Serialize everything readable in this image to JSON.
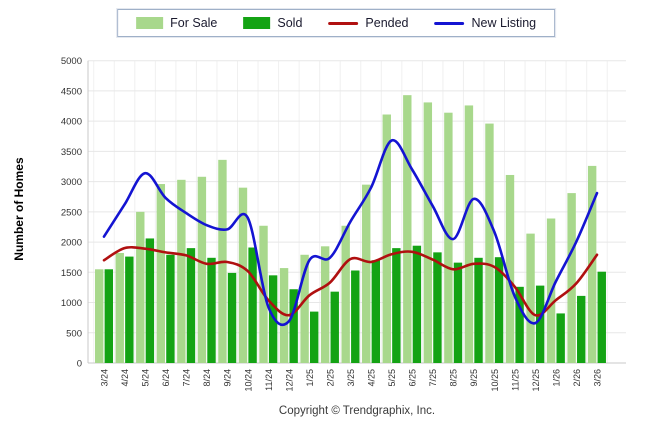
{
  "page": {
    "background": "#ffffff"
  },
  "legend": {
    "position": "top",
    "items": [
      {
        "label": "For Sale",
        "swatch": "bar",
        "color": "#a8d88c"
      },
      {
        "label": "Sold",
        "swatch": "bar",
        "color": "#14a314"
      },
      {
        "label": "Pended",
        "swatch": "line",
        "color": "#b01010"
      },
      {
        "label": "New Listing",
        "swatch": "line",
        "color": "#1414d2"
      }
    ]
  },
  "y_axis": {
    "title": "Number of Homes",
    "min": 0,
    "max": 5000,
    "step": 500
  },
  "footer": {
    "text": "Copyright © Trendgraphix, Inc."
  },
  "chart_data": {
    "type": "bar",
    "title": "",
    "xlabel": "",
    "ylabel": "Number of Homes",
    "ylim": [
      0,
      5000
    ],
    "ytick_step": 500,
    "grid": true,
    "legend_position": "top",
    "categories": [
      "3/24",
      "4/24",
      "5/24",
      "6/24",
      "7/24",
      "8/24",
      "9/24",
      "10/24",
      "11/24",
      "12/24",
      "1/25",
      "2/25",
      "3/25",
      "4/25",
      "5/25",
      "6/25",
      "7/25",
      "8/25",
      "9/25",
      "10/25",
      "11/25",
      "12/25",
      "1/26",
      "2/26",
      "3/26"
    ],
    "series": [
      {
        "name": "For Sale",
        "type": "bar",
        "color": "#a8d88c",
        "values": [
          1550,
          1820,
          2500,
          2960,
          3030,
          3080,
          3360,
          2900,
          2270,
          1570,
          1790,
          1930,
          2270,
          2950,
          4110,
          4430,
          4310,
          4140,
          4260,
          3960,
          3110,
          2140,
          2390,
          2810,
          3260
        ]
      },
      {
        "name": "Sold",
        "type": "bar",
        "color": "#14a314",
        "values": [
          1550,
          1760,
          2060,
          1790,
          1900,
          1740,
          1490,
          1910,
          1450,
          1220,
          850,
          1180,
          1530,
          1700,
          1900,
          1940,
          1830,
          1660,
          1740,
          1750,
          1260,
          1280,
          820,
          1110,
          1510
        ]
      },
      {
        "name": "Pended",
        "type": "line",
        "color": "#b01010",
        "values": [
          1700,
          1900,
          1890,
          1830,
          1780,
          1640,
          1670,
          1520,
          1040,
          790,
          1120,
          1330,
          1720,
          1670,
          1800,
          1840,
          1710,
          1550,
          1640,
          1590,
          1260,
          790,
          1040,
          1320,
          1790
        ]
      },
      {
        "name": "New Listing",
        "type": "line",
        "color": "#1414d2",
        "values": [
          2090,
          2620,
          3140,
          2730,
          2480,
          2280,
          2210,
          2400,
          930,
          690,
          1700,
          1740,
          2340,
          2900,
          3680,
          3200,
          2600,
          2050,
          2715,
          2170,
          1100,
          660,
          1350,
          2010,
          2810
        ]
      }
    ]
  },
  "colors": {
    "grid_h": "#e7e7e7",
    "grid_v": "#f0f0f0",
    "axis": "#c8c8c8",
    "tick_text": "#333333"
  }
}
